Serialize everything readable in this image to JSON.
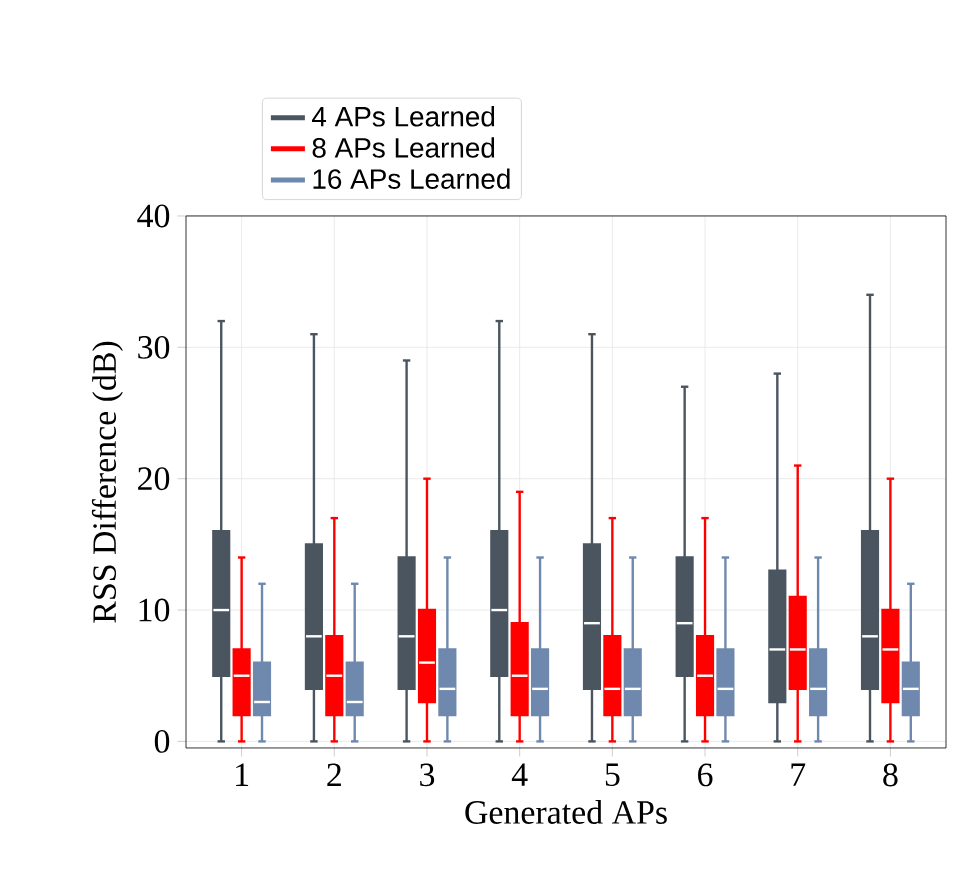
{
  "chart_data": {
    "type": "box",
    "xlabel": "Generated APs",
    "ylabel": "RSS Difference (dB)",
    "categories": [
      "1",
      "2",
      "3",
      "4",
      "5",
      "6",
      "7",
      "8"
    ],
    "ylim": [
      -0.5,
      40
    ],
    "yticks": [
      0,
      10,
      20,
      30,
      40
    ],
    "grid": true,
    "legend": "top left",
    "series": [
      {
        "name": "4 APs Learned",
        "color": "#4a5560",
        "boxes": [
          {
            "low": 0,
            "q1": 5,
            "median": 10,
            "q3": 16,
            "high": 32
          },
          {
            "low": 0,
            "q1": 4,
            "median": 8,
            "q3": 15,
            "high": 31
          },
          {
            "low": 0,
            "q1": 4,
            "median": 8,
            "q3": 14,
            "high": 29
          },
          {
            "low": 0,
            "q1": 5,
            "median": 10,
            "q3": 16,
            "high": 32
          },
          {
            "low": 0,
            "q1": 4,
            "median": 9,
            "q3": 15,
            "high": 31
          },
          {
            "low": 0,
            "q1": 5,
            "median": 9,
            "q3": 14,
            "high": 27
          },
          {
            "low": 0,
            "q1": 3,
            "median": 7,
            "q3": 13,
            "high": 28
          },
          {
            "low": 0,
            "q1": 4,
            "median": 8,
            "q3": 16,
            "high": 34
          }
        ]
      },
      {
        "name": "8 APs Learned",
        "color": "#ff0000",
        "boxes": [
          {
            "low": 0,
            "q1": 2,
            "median": 5,
            "q3": 7,
            "high": 14
          },
          {
            "low": 0,
            "q1": 2,
            "median": 5,
            "q3": 8,
            "high": 17
          },
          {
            "low": 0,
            "q1": 3,
            "median": 6,
            "q3": 10,
            "high": 20
          },
          {
            "low": 0,
            "q1": 2,
            "median": 5,
            "q3": 9,
            "high": 19
          },
          {
            "low": 0,
            "q1": 2,
            "median": 4,
            "q3": 8,
            "high": 17
          },
          {
            "low": 0,
            "q1": 2,
            "median": 5,
            "q3": 8,
            "high": 17
          },
          {
            "low": 0,
            "q1": 4,
            "median": 7,
            "q3": 11,
            "high": 21
          },
          {
            "low": 0,
            "q1": 3,
            "median": 7,
            "q3": 10,
            "high": 20
          }
        ]
      },
      {
        "name": "16 APs Learned",
        "color": "#6f88ad",
        "boxes": [
          {
            "low": 0,
            "q1": 2,
            "median": 3,
            "q3": 6,
            "high": 12
          },
          {
            "low": 0,
            "q1": 2,
            "median": 3,
            "q3": 6,
            "high": 12
          },
          {
            "low": 0,
            "q1": 2,
            "median": 4,
            "q3": 7,
            "high": 14
          },
          {
            "low": 0,
            "q1": 2,
            "median": 4,
            "q3": 7,
            "high": 14
          },
          {
            "low": 0,
            "q1": 2,
            "median": 4,
            "q3": 7,
            "high": 14
          },
          {
            "low": 0,
            "q1": 2,
            "median": 4,
            "q3": 7,
            "high": 14
          },
          {
            "low": 0,
            "q1": 2,
            "median": 4,
            "q3": 7,
            "high": 14
          },
          {
            "low": 0,
            "q1": 2,
            "median": 4,
            "q3": 6,
            "high": 12
          }
        ]
      }
    ]
  }
}
